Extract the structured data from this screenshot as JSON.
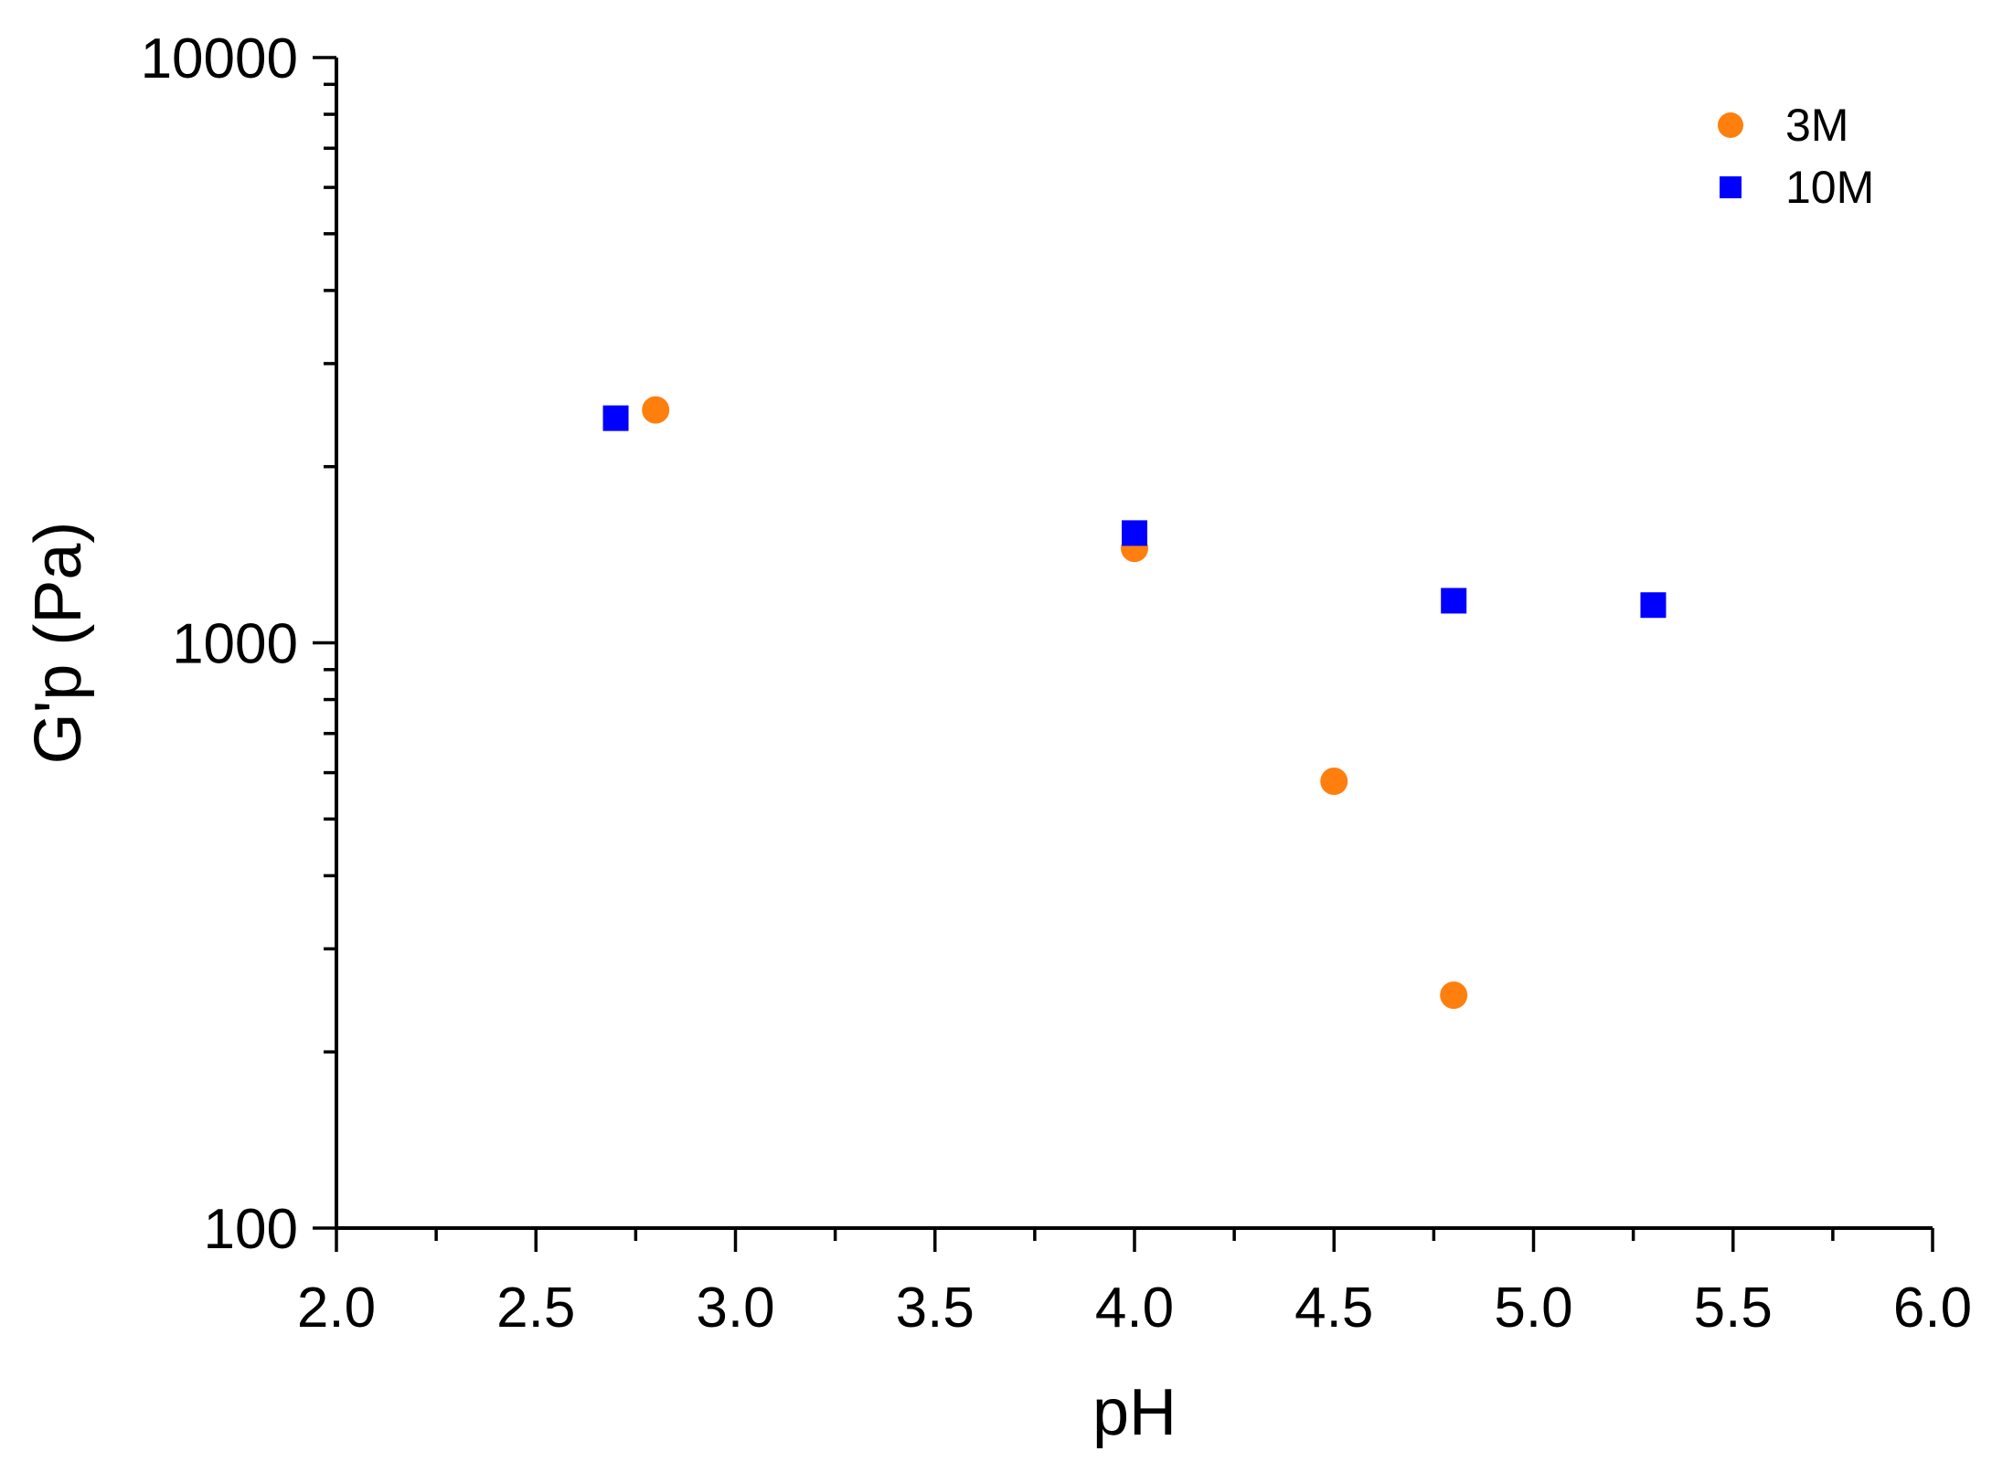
{
  "chart_data": {
    "type": "scatter",
    "xlabel": "pH",
    "ylabel": "G'p (Pa)",
    "xlim": [
      2.0,
      6.0
    ],
    "ylim": [
      100,
      10000
    ],
    "yscale": "log",
    "x_ticks": [
      "2.0",
      "2.5",
      "3.0",
      "3.5",
      "4.0",
      "4.5",
      "5.0",
      "5.5",
      "6.0"
    ],
    "y_ticks": [
      "100",
      "1000",
      "10000"
    ],
    "grid": false,
    "legend_position": "top-right",
    "series": [
      {
        "name": "3M",
        "marker": "circle",
        "color": "#FF7F0E",
        "x": [
          2.8,
          4.0,
          4.5,
          4.8
        ],
        "y": [
          2500,
          1450,
          580,
          250
        ]
      },
      {
        "name": "10M",
        "marker": "square",
        "color": "#0000FF",
        "x": [
          2.7,
          4.0,
          4.8,
          5.3
        ],
        "y": [
          2420,
          1540,
          1180,
          1160
        ]
      }
    ]
  }
}
